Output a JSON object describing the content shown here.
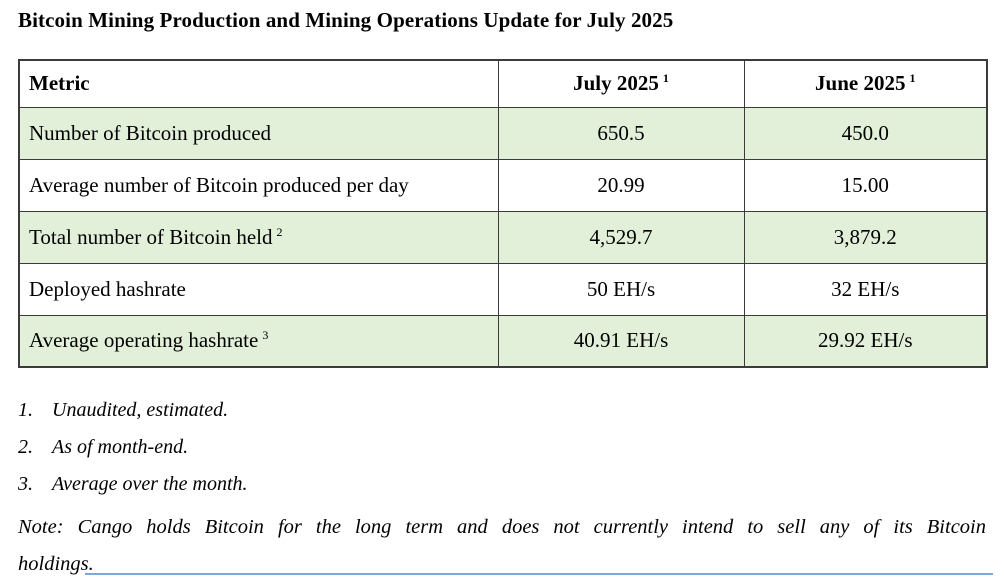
{
  "page": {
    "title": "Bitcoin Mining Production and Mining Operations Update for July 2025"
  },
  "table": {
    "columns": [
      {
        "label": "Metric",
        "sup": ""
      },
      {
        "label": "July 2025",
        "sup": "1"
      },
      {
        "label": "June 2025",
        "sup": "1"
      }
    ],
    "rows": [
      {
        "metric": "Number of Bitcoin produced",
        "sup": "",
        "july": "650.5",
        "june": "450.0"
      },
      {
        "metric": "Average number of Bitcoin produced per day",
        "sup": "",
        "july": "20.99",
        "june": "15.00"
      },
      {
        "metric": "Total number of Bitcoin held",
        "sup": "2",
        "july": "4,529.7",
        "june": "3,879.2"
      },
      {
        "metric": "Deployed hashrate",
        "sup": "",
        "july": "50 EH/s",
        "june": "32 EH/s"
      },
      {
        "metric": "Average operating hashrate",
        "sup": "3",
        "july": "40.91 EH/s",
        "june": "29.92 EH/s"
      }
    ]
  },
  "footnotes": [
    {
      "number": "1.",
      "text": "Unaudited, estimated."
    },
    {
      "number": "2.",
      "text": "As of month-end."
    },
    {
      "number": "3.",
      "text": "Average over the month."
    }
  ],
  "note": {
    "line1": "Note: Cango holds Bitcoin for the long term and does not currently intend to sell any of its Bitcoin",
    "line2": "holdings."
  },
  "colors": {
    "row_highlight_green": "#e2efd9",
    "table_border": "#3b3b3b",
    "bottom_divider_blue": "#7da7dd"
  }
}
